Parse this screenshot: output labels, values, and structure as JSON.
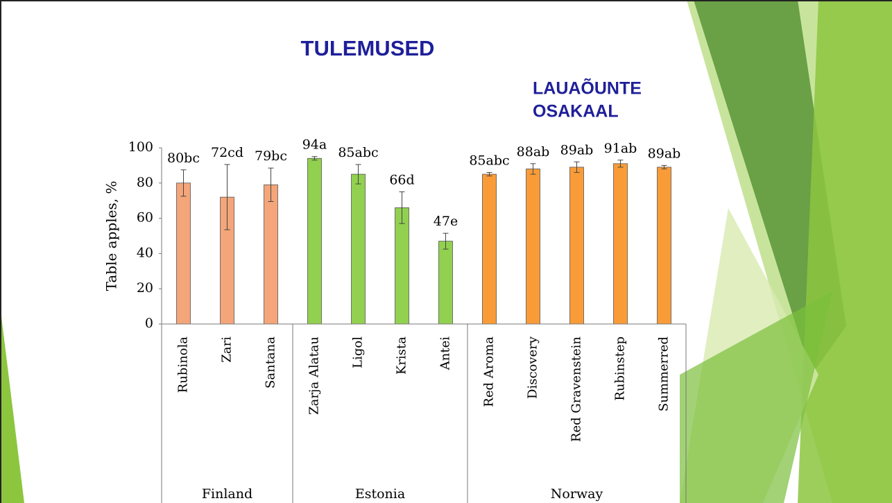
{
  "header": {
    "title": "TULEMUSED",
    "subtitle": [
      "LAUAÕUNTE",
      "OSAKAAL"
    ]
  },
  "chart_data": {
    "type": "bar",
    "y_label": "Table apples, %",
    "ylim": [
      0,
      100
    ],
    "yticks": [
      0,
      20,
      40,
      60,
      80,
      100
    ],
    "groups": [
      {
        "name": "Finland",
        "color": "#f4a57a",
        "categories": [
          "Rubinola",
          "Zari",
          "Santana"
        ],
        "values": [
          80,
          72,
          79
        ],
        "errors": [
          7.5,
          18.5,
          9.5
        ],
        "value_labels": [
          "80bc",
          "72cd",
          "79bc"
        ]
      },
      {
        "name": "Estonia",
        "color": "#92d050",
        "categories": [
          "Zarja Alatau",
          "Ligol",
          "Krista",
          "Antei"
        ],
        "values": [
          94,
          85,
          66,
          47
        ],
        "errors": [
          1,
          5.5,
          9,
          4.5
        ],
        "value_labels": [
          "94a",
          "85abc",
          "66d",
          "47e"
        ]
      },
      {
        "name": "Norway",
        "color": "#f99c38",
        "categories": [
          "Red Aroma",
          "Discovery",
          "Red Gravenstein",
          "Rubinstep",
          "Summerred"
        ],
        "values": [
          85,
          88,
          89,
          91,
          89
        ],
        "errors": [
          1,
          3,
          3,
          2,
          1
        ],
        "value_labels": [
          "85abc",
          "88ab",
          "89ab",
          "91ab",
          "89ab"
        ]
      }
    ]
  }
}
